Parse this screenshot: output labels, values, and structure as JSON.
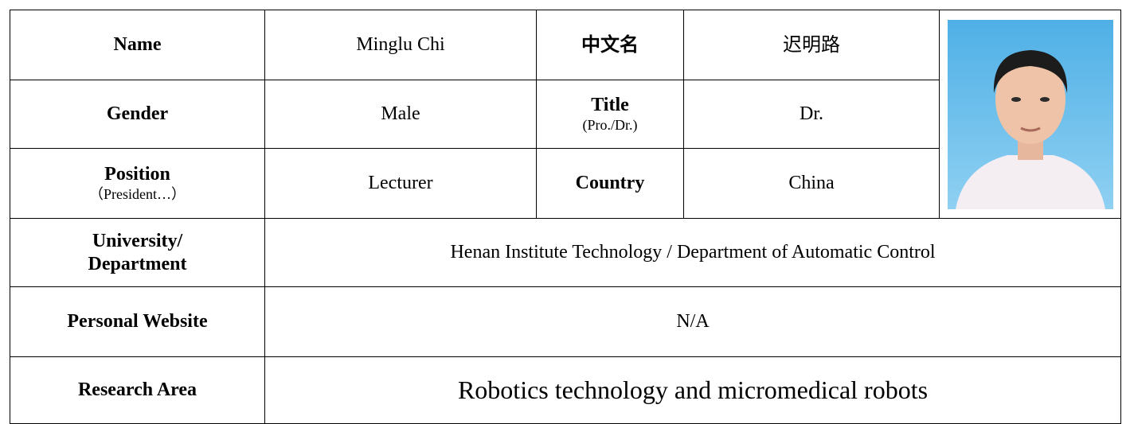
{
  "profile": {
    "name": {
      "label": "Name",
      "value": "Minglu Chi"
    },
    "chinese_name": {
      "label": "中文名",
      "value": "迟明路"
    },
    "gender": {
      "label": "Gender",
      "value": "Male"
    },
    "title": {
      "label": "Title",
      "hint": "(Pro./Dr.)",
      "value": "Dr."
    },
    "position": {
      "label": "Position",
      "hint": "（President…）",
      "value": "Lecturer"
    },
    "country": {
      "label": "Country",
      "value": "China"
    },
    "university": {
      "label": "University/\nDepartment",
      "value": "Henan Institute Technology / Department of Automatic Control"
    },
    "website": {
      "label": "Personal Website",
      "value": "N/A"
    },
    "research_area": {
      "label": "Research Area",
      "value": "Robotics technology and micromedical robots"
    }
  }
}
